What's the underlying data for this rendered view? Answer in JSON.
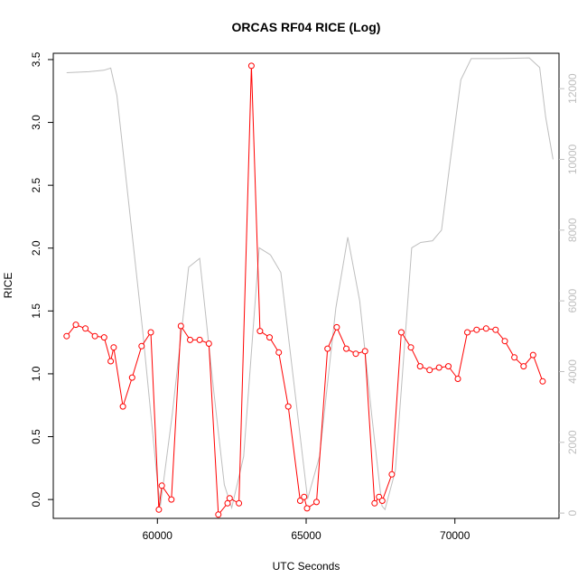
{
  "chart_data": {
    "type": "line",
    "title": "ORCAS RF04 RICE (Log)",
    "xlabel": "UTC Seconds",
    "ylabel": "RICE",
    "xlim": [
      56500,
      73500
    ],
    "ylim": [
      -0.15,
      3.55
    ],
    "y2lim": [
      -150,
      13000
    ],
    "x_ticks": [
      "60000",
      "65000",
      "70000"
    ],
    "y_ticks": [
      "0.0",
      "0.5",
      "1.0",
      "1.5",
      "2.0",
      "2.5",
      "3.0",
      "3.5"
    ],
    "y2_ticks": [
      "0",
      "2000",
      "4000",
      "6000",
      "8000",
      "10000",
      "12000"
    ],
    "grid": false,
    "colors": {
      "rice": "#ff0000",
      "altitude": "#bebebe",
      "axis": "#000000"
    },
    "series": [
      {
        "axis": "left",
        "marker": "open-circle",
        "points": [
          [
            56950,
            1.3
          ],
          [
            57260,
            1.39
          ],
          [
            57580,
            1.36
          ],
          [
            57900,
            1.3
          ],
          [
            58210,
            1.29
          ],
          [
            58430,
            1.1
          ],
          [
            58530,
            1.21
          ],
          [
            58840,
            0.74
          ],
          [
            59150,
            0.97
          ],
          [
            59470,
            1.22
          ],
          [
            59780,
            1.33
          ],
          [
            60050,
            -0.08
          ],
          [
            60150,
            0.11
          ],
          [
            60470,
            0.0
          ],
          [
            60790,
            1.38
          ],
          [
            61100,
            1.27
          ],
          [
            61420,
            1.27
          ],
          [
            61730,
            1.24
          ],
          [
            62050,
            -0.12
          ],
          [
            62360,
            -0.03
          ],
          [
            62430,
            0.01
          ],
          [
            62740,
            -0.03
          ],
          [
            63160,
            3.45
          ],
          [
            63450,
            1.34
          ],
          [
            63770,
            1.29
          ],
          [
            64080,
            1.17
          ],
          [
            64400,
            0.74
          ],
          [
            64800,
            -0.01
          ],
          [
            64930,
            0.02
          ],
          [
            65030,
            -0.07
          ],
          [
            65350,
            -0.02
          ],
          [
            65720,
            1.2
          ],
          [
            66030,
            1.37
          ],
          [
            66350,
            1.2
          ],
          [
            66670,
            1.16
          ],
          [
            66980,
            1.18
          ],
          [
            67300,
            -0.03
          ],
          [
            67450,
            0.02
          ],
          [
            67560,
            -0.01
          ],
          [
            67880,
            0.2
          ],
          [
            68200,
            1.33
          ],
          [
            68520,
            1.21
          ],
          [
            68830,
            1.06
          ],
          [
            69150,
            1.03
          ],
          [
            69470,
            1.05
          ],
          [
            69780,
            1.06
          ],
          [
            70100,
            0.96
          ],
          [
            70420,
            1.33
          ],
          [
            70730,
            1.35
          ],
          [
            71050,
            1.36
          ],
          [
            71370,
            1.35
          ],
          [
            71680,
            1.26
          ],
          [
            72000,
            1.13
          ],
          [
            72310,
            1.06
          ],
          [
            72630,
            1.15
          ],
          [
            72950,
            0.94
          ]
        ]
      },
      {
        "axis": "right",
        "marker": "none",
        "points": [
          [
            56950,
            12450
          ],
          [
            57700,
            12480
          ],
          [
            58200,
            12520
          ],
          [
            58430,
            12580
          ],
          [
            58640,
            11800
          ],
          [
            58900,
            9800
          ],
          [
            59500,
            5200
          ],
          [
            60000,
            900
          ],
          [
            60100,
            200
          ],
          [
            60500,
            2800
          ],
          [
            61050,
            6950
          ],
          [
            61420,
            7200
          ],
          [
            61900,
            3400
          ],
          [
            62250,
            800
          ],
          [
            62500,
            150
          ],
          [
            62900,
            1600
          ],
          [
            63420,
            7500
          ],
          [
            63800,
            7300
          ],
          [
            64150,
            6800
          ],
          [
            64600,
            3600
          ],
          [
            65050,
            400
          ],
          [
            65450,
            1600
          ],
          [
            66000,
            5800
          ],
          [
            66400,
            7800
          ],
          [
            66800,
            6000
          ],
          [
            67200,
            2800
          ],
          [
            67550,
            200
          ],
          [
            67650,
            100
          ],
          [
            68000,
            1200
          ],
          [
            68550,
            7500
          ],
          [
            68850,
            7650
          ],
          [
            69250,
            7700
          ],
          [
            69550,
            8000
          ],
          [
            69850,
            10000
          ],
          [
            70200,
            12250
          ],
          [
            70550,
            12850
          ],
          [
            71500,
            12850
          ],
          [
            72500,
            12870
          ],
          [
            72850,
            12600
          ],
          [
            73050,
            11200
          ],
          [
            73300,
            10000
          ]
        ]
      }
    ]
  }
}
